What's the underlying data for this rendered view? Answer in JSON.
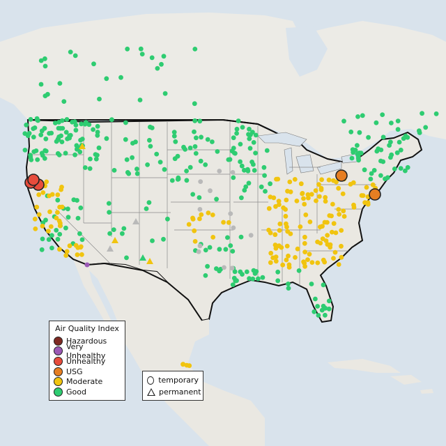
{
  "legend": {
    "title": "Air Quality Index",
    "items": [
      {
        "label": "Hazardous",
        "color": "#7e2a22"
      },
      {
        "label": "Very Unhealthy",
        "color": "#9b59b6"
      },
      {
        "label": "Unhealthy",
        "color": "#e74c3c"
      },
      {
        "label": "USG",
        "color": "#e67e22"
      },
      {
        "label": "Moderate",
        "color": "#f1c40f"
      },
      {
        "label": "Good",
        "color": "#2ecc71"
      }
    ]
  },
  "shape_legend": {
    "items": [
      {
        "label": "temporary",
        "symbol": "circle"
      },
      {
        "label": "permanent",
        "symbol": "triangle"
      }
    ]
  },
  "colors": {
    "water": "#d9e3ec",
    "land": "#eae8e2",
    "border": "#111111",
    "state_line": "#8a8a8a",
    "good": "#2ecc71",
    "moderate": "#f1c40f",
    "usg": "#e67e22",
    "unhealthy": "#e74c3c",
    "very_unhealthy": "#9b59b6",
    "no_data": "#b9b9b9"
  }
}
